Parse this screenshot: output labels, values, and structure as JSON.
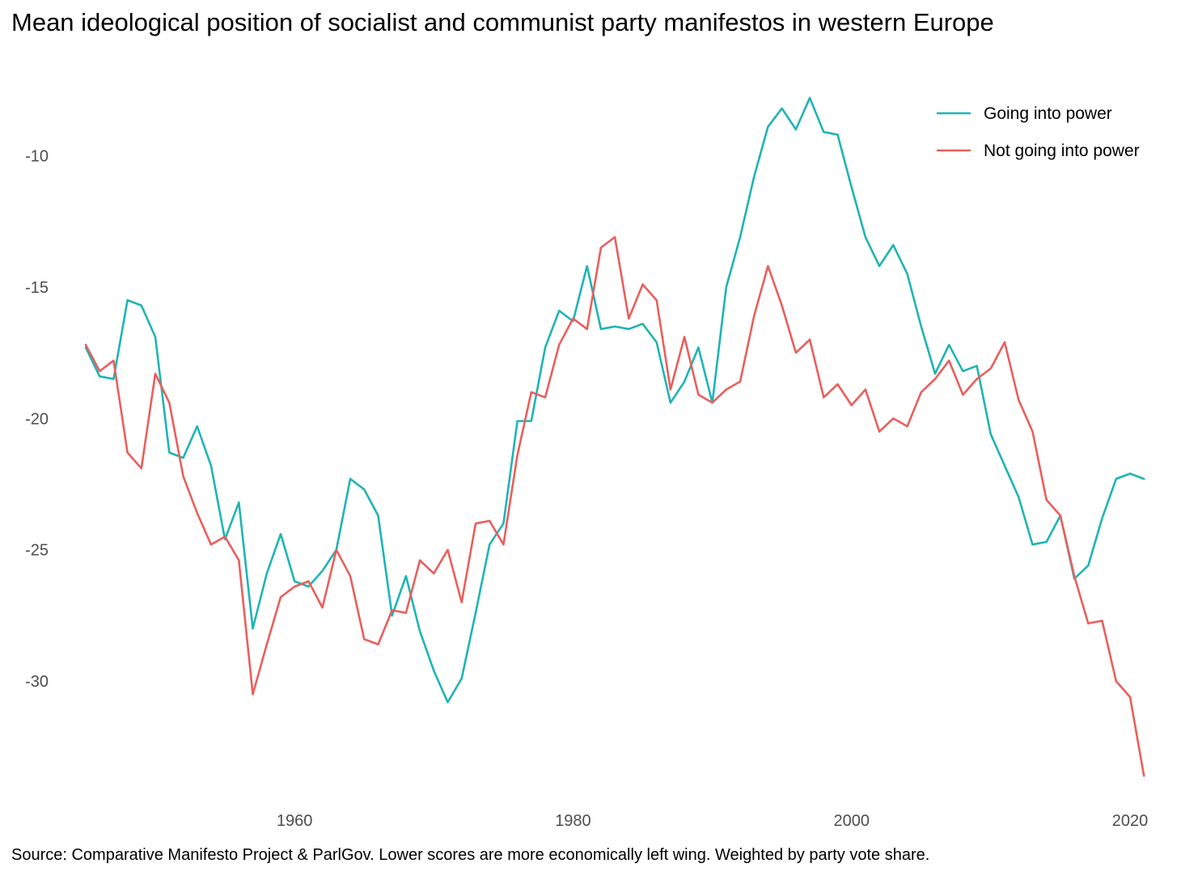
{
  "title": "Mean ideological position of socialist and communist party manifestos in western Europe",
  "caption": "Source: Comparative Manifesto Project & ParlGov. Lower scores are more economically left wing. Weighted by party vote share.",
  "chart_data": {
    "type": "line",
    "title": "Mean ideological position of socialist and communist party manifestos in western Europe",
    "xlabel": "",
    "ylabel": "",
    "xlim": [
      1943.2,
      2022.5
    ],
    "ylim": [
      -34.4,
      -7.0
    ],
    "x_ticks": [
      1960,
      1980,
      2000,
      2020
    ],
    "y_ticks": [
      -10,
      -15,
      -20,
      -25,
      -30
    ],
    "grid": false,
    "legend_position": "top-right",
    "series": [
      {
        "name": "Going into power",
        "color": "#1fb4b4",
        "x": [
          1945,
          1946,
          1947,
          1948,
          1949,
          1950,
          1951,
          1952,
          1953,
          1954,
          1955,
          1956,
          1957,
          1958,
          1959,
          1960,
          1961,
          1962,
          1963,
          1964,
          1965,
          1966,
          1967,
          1968,
          1969,
          1970,
          1971,
          1972,
          1973,
          1974,
          1975,
          1976,
          1977,
          1978,
          1979,
          1980,
          1981,
          1982,
          1983,
          1984,
          1985,
          1986,
          1987,
          1988,
          1989,
          1990,
          1991,
          1992,
          1993,
          1994,
          1995,
          1996,
          1997,
          1998,
          1999,
          2000,
          2001,
          2002,
          2003,
          2004,
          2005,
          2006,
          2007,
          2008,
          2009,
          2010,
          2011,
          2012,
          2013,
          2014,
          2015,
          2016,
          2017,
          2018,
          2019,
          2020,
          2021
        ],
        "values": [
          -17.3,
          -18.4,
          -18.5,
          -15.5,
          -15.7,
          -16.9,
          -21.3,
          -21.5,
          -20.3,
          -21.8,
          -24.6,
          -23.2,
          -28.0,
          -25.9,
          -24.4,
          -26.2,
          -26.4,
          -25.8,
          -25.0,
          -22.3,
          -22.7,
          -23.7,
          -27.5,
          -26.0,
          -28.1,
          -29.6,
          -30.8,
          -29.9,
          -27.4,
          -24.8,
          -24.0,
          -20.1,
          -20.1,
          -17.3,
          -15.9,
          -16.3,
          -14.2,
          -16.6,
          -16.5,
          -16.6,
          -16.4,
          -17.1,
          -19.4,
          -18.6,
          -17.3,
          -19.4,
          -15.0,
          -13.1,
          -10.8,
          -8.9,
          -8.2,
          -9.0,
          -7.8,
          -9.1,
          -9.2,
          -11.2,
          -13.1,
          -14.2,
          -13.4,
          -14.5,
          -16.5,
          -18.3,
          -17.2,
          -18.2,
          -18.0,
          -20.6,
          -21.8,
          -23.0,
          -24.8,
          -24.7,
          -23.7,
          -26.1,
          -25.6,
          -23.8,
          -22.3,
          -22.1,
          -22.3
        ]
      },
      {
        "name": "Not going into power",
        "color": "#e95f5c",
        "x": [
          1945,
          1946,
          1947,
          1948,
          1949,
          1950,
          1951,
          1952,
          1953,
          1954,
          1955,
          1956,
          1957,
          1958,
          1959,
          1960,
          1961,
          1962,
          1963,
          1964,
          1965,
          1966,
          1967,
          1968,
          1969,
          1970,
          1971,
          1972,
          1973,
          1974,
          1975,
          1976,
          1977,
          1978,
          1979,
          1980,
          1981,
          1982,
          1983,
          1984,
          1985,
          1986,
          1987,
          1988,
          1989,
          1990,
          1991,
          1992,
          1993,
          1994,
          1995,
          1996,
          1997,
          1998,
          1999,
          2000,
          2001,
          2002,
          2003,
          2004,
          2005,
          2006,
          2007,
          2008,
          2009,
          2010,
          2011,
          2012,
          2013,
          2014,
          2015,
          2016,
          2017,
          2018,
          2019,
          2020,
          2021
        ],
        "values": [
          -17.2,
          -18.2,
          -17.8,
          -21.3,
          -21.9,
          -18.3,
          -19.4,
          -22.2,
          -23.6,
          -24.8,
          -24.5,
          -25.4,
          -30.5,
          -28.6,
          -26.8,
          -26.4,
          -26.2,
          -27.2,
          -25.0,
          -26.0,
          -28.4,
          -28.6,
          -27.3,
          -27.4,
          -25.4,
          -25.9,
          -25.0,
          -27.0,
          -24.0,
          -23.9,
          -24.8,
          -21.4,
          -19.0,
          -19.2,
          -17.2,
          -16.2,
          -16.6,
          -13.5,
          -13.1,
          -16.2,
          -14.9,
          -15.5,
          -18.9,
          -16.9,
          -19.1,
          -19.4,
          -18.9,
          -18.6,
          -16.1,
          -14.2,
          -15.7,
          -17.5,
          -17.0,
          -19.2,
          -18.7,
          -19.5,
          -18.9,
          -20.5,
          -20.0,
          -20.3,
          -19.0,
          -18.5,
          -17.8,
          -19.1,
          -18.5,
          -18.1,
          -17.1,
          -19.3,
          -20.5,
          -23.1,
          -23.7,
          -26.0,
          -27.8,
          -27.7,
          -30.0,
          -30.6,
          -33.6
        ]
      }
    ]
  }
}
